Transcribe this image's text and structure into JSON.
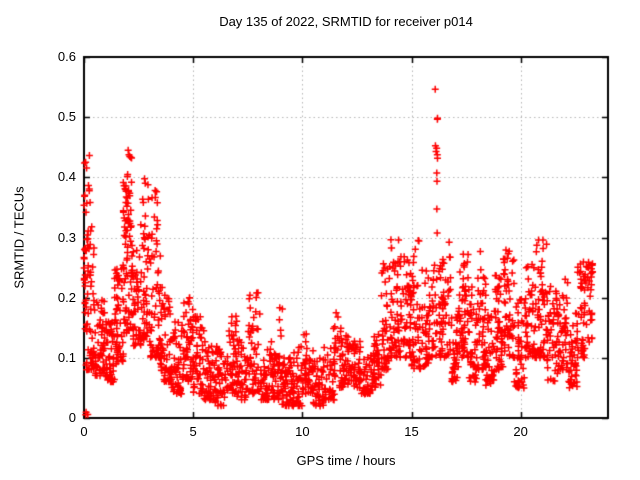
{
  "title": "Day 135 of 2022, SRMTID for receiver p014",
  "chart_data": {
    "type": "scatter",
    "title": "Day 135 of 2022, SRMTID for receiver p014",
    "xlabel": "GPS time / hours",
    "ylabel": "SRMTID / TECUs",
    "xlim": [
      0,
      24
    ],
    "ylim": [
      0,
      0.6
    ],
    "x_ticks": [
      {
        "v": 0,
        "label": "0"
      },
      {
        "v": 5,
        "label": "5"
      },
      {
        "v": 10,
        "label": "10"
      },
      {
        "v": 15,
        "label": "15"
      },
      {
        "v": 20,
        "label": "20"
      }
    ],
    "y_ticks": [
      {
        "v": 0,
        "label": "0"
      },
      {
        "v": 0.1,
        "label": "0.1"
      },
      {
        "v": 0.2,
        "label": "0.2"
      },
      {
        "v": 0.3,
        "label": "0.3"
      },
      {
        "v": 0.4,
        "label": "0.4"
      },
      {
        "v": 0.5,
        "label": "0.5"
      },
      {
        "v": 0.6,
        "label": "0.6"
      }
    ],
    "grid": true,
    "grid_color": "#b4b4b4",
    "border_color": "#000000",
    "marker": {
      "shape": "plus",
      "color": "#ff0000",
      "size": 7
    },
    "legend": "none",
    "seed": 135,
    "notable_points": [
      {
        "x": 16.1,
        "y": 0.56,
        "note": "maximum, vertical spike 0.32-0.56"
      },
      {
        "x": 0.05,
        "y": 0.46,
        "note": "burst at day start"
      },
      {
        "x": 1.95,
        "y": 0.45,
        "note": "cluster peak"
      },
      {
        "x": 2.8,
        "y": 0.4,
        "note": "cluster peak"
      },
      {
        "x": 0.1,
        "y": 0.0,
        "note": "points on zero line"
      },
      {
        "x": 23.3,
        "y": 0.2,
        "note": "last data near 23.3 h"
      }
    ],
    "point_bins": [
      [
        0.0,
        0.06,
        8,
        0.17,
        0.28,
        1.0
      ],
      [
        0.0,
        0.12,
        14,
        0.18,
        0.46,
        1.0
      ],
      [
        0.02,
        0.2,
        3,
        0.0,
        0.01,
        1.0
      ],
      [
        0.05,
        0.5,
        55,
        0.08,
        0.33,
        1.6
      ],
      [
        0.1,
        0.4,
        10,
        0.28,
        0.44,
        1.0
      ],
      [
        0.5,
        1.0,
        55,
        0.07,
        0.2,
        1.5
      ],
      [
        1.0,
        1.4,
        45,
        0.06,
        0.16,
        1.5
      ],
      [
        1.4,
        1.8,
        55,
        0.09,
        0.26,
        1.4
      ],
      [
        1.8,
        2.2,
        40,
        0.3,
        0.45,
        0.9
      ],
      [
        1.8,
        2.2,
        45,
        0.14,
        0.32,
        1.3
      ],
      [
        2.2,
        2.6,
        45,
        0.12,
        0.28,
        1.4
      ],
      [
        2.6,
        3.0,
        50,
        0.13,
        0.4,
        1.6
      ],
      [
        3.0,
        3.5,
        65,
        0.1,
        0.38,
        1.7
      ],
      [
        3.5,
        4.0,
        55,
        0.06,
        0.22,
        1.6
      ],
      [
        4.0,
        4.5,
        50,
        0.04,
        0.16,
        1.5
      ],
      [
        4.5,
        5.0,
        55,
        0.06,
        0.2,
        1.4
      ],
      [
        5.0,
        5.5,
        48,
        0.04,
        0.17,
        1.5
      ],
      [
        5.5,
        6.0,
        45,
        0.03,
        0.13,
        1.5
      ],
      [
        6.0,
        6.5,
        45,
        0.02,
        0.12,
        1.5
      ],
      [
        6.5,
        7.0,
        50,
        0.04,
        0.17,
        1.5
      ],
      [
        7.0,
        7.5,
        45,
        0.03,
        0.13,
        1.5
      ],
      [
        7.5,
        8.1,
        55,
        0.04,
        0.21,
        1.6
      ],
      [
        8.1,
        8.6,
        45,
        0.03,
        0.13,
        1.5
      ],
      [
        8.6,
        9.0,
        40,
        0.03,
        0.11,
        1.5
      ],
      [
        8.95,
        9.1,
        5,
        0.13,
        0.19,
        1.0
      ],
      [
        9.0,
        9.5,
        45,
        0.02,
        0.1,
        1.4
      ],
      [
        9.5,
        10.0,
        45,
        0.02,
        0.12,
        1.4
      ],
      [
        10.0,
        10.5,
        45,
        0.04,
        0.14,
        1.4
      ],
      [
        10.5,
        11.0,
        42,
        0.02,
        0.1,
        1.4
      ],
      [
        11.0,
        11.5,
        42,
        0.03,
        0.12,
        1.4
      ],
      [
        11.4,
        11.7,
        12,
        0.1,
        0.18,
        1.0
      ],
      [
        11.7,
        12.2,
        48,
        0.05,
        0.15,
        1.4
      ],
      [
        12.2,
        12.7,
        45,
        0.05,
        0.13,
        1.4
      ],
      [
        12.7,
        13.2,
        40,
        0.04,
        0.11,
        1.4
      ],
      [
        13.2,
        13.6,
        40,
        0.05,
        0.14,
        1.3
      ],
      [
        13.6,
        14.0,
        45,
        0.08,
        0.27,
        1.3
      ],
      [
        14.0,
        14.5,
        55,
        0.1,
        0.3,
        1.4
      ],
      [
        14.5,
        15.0,
        55,
        0.1,
        0.27,
        1.4
      ],
      [
        15.0,
        15.5,
        50,
        0.08,
        0.3,
        1.5
      ],
      [
        15.5,
        16.0,
        45,
        0.08,
        0.25,
        1.4
      ],
      [
        16.05,
        16.2,
        13,
        0.25,
        0.56,
        1.0
      ],
      [
        16.0,
        16.3,
        20,
        0.1,
        0.25,
        1.2
      ],
      [
        16.3,
        16.8,
        50,
        0.1,
        0.3,
        1.5
      ],
      [
        16.8,
        17.2,
        42,
        0.06,
        0.2,
        1.4
      ],
      [
        17.2,
        17.6,
        45,
        0.1,
        0.28,
        1.5
      ],
      [
        17.6,
        18.0,
        42,
        0.06,
        0.22,
        1.4
      ],
      [
        18.0,
        18.4,
        45,
        0.08,
        0.28,
        1.5
      ],
      [
        18.4,
        18.8,
        40,
        0.05,
        0.18,
        1.4
      ],
      [
        18.8,
        19.2,
        45,
        0.08,
        0.24,
        1.4
      ],
      [
        19.2,
        19.7,
        50,
        0.1,
        0.28,
        1.5
      ],
      [
        19.7,
        20.2,
        45,
        0.05,
        0.2,
        1.4
      ],
      [
        20.2,
        20.7,
        50,
        0.1,
        0.26,
        1.4
      ],
      [
        20.7,
        21.2,
        50,
        0.1,
        0.3,
        1.5
      ],
      [
        21.2,
        21.7,
        45,
        0.06,
        0.22,
        1.4
      ],
      [
        21.7,
        22.2,
        45,
        0.08,
        0.25,
        1.4
      ],
      [
        22.2,
        22.6,
        40,
        0.05,
        0.18,
        1.4
      ],
      [
        22.6,
        23.0,
        45,
        0.1,
        0.26,
        1.3
      ],
      [
        23.0,
        23.3,
        30,
        0.12,
        0.26,
        1.2
      ]
    ]
  }
}
